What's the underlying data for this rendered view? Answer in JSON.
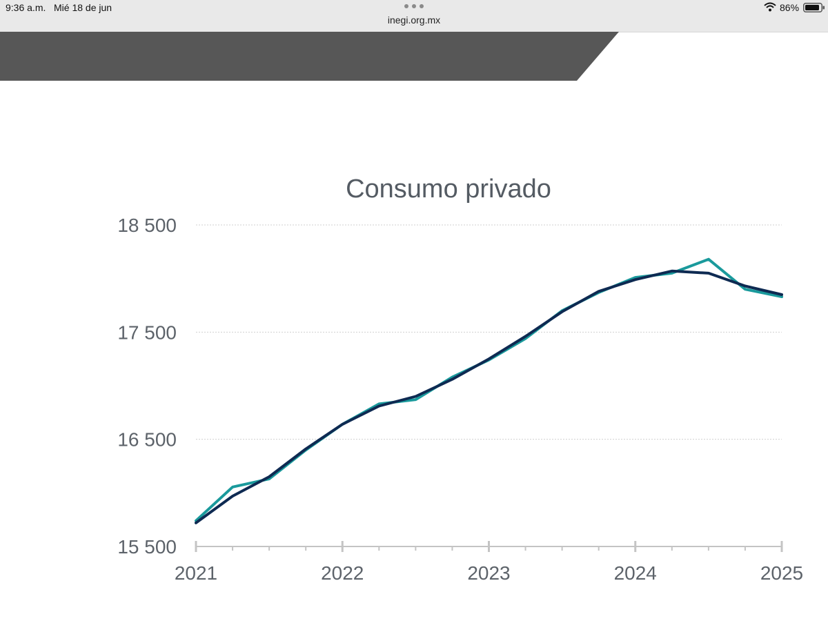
{
  "status_bar": {
    "time": "9:36 a.m.",
    "date": "Mié 18 de jun",
    "url": "inegi.org.mx",
    "battery": "86%"
  },
  "colors": {
    "banner": "#575757",
    "series_teal": "#1a9a9c",
    "series_navy": "#0e2a52",
    "grid": "#cfcfcf",
    "axis": "#c4c4c4"
  },
  "icons": [
    "tab-overview-icon",
    "wifi-icon",
    "battery-icon"
  ],
  "chart_data": {
    "type": "line",
    "title": "Consumo privado",
    "xlabel": "",
    "ylabel": "",
    "xlim": [
      2021,
      2025
    ],
    "ylim": [
      15500,
      18500
    ],
    "y_ticks": [
      15500,
      16500,
      17500,
      18500
    ],
    "y_tick_labels": [
      "15 500",
      "16 500",
      "17 500",
      "18 500"
    ],
    "x_ticks": [
      2021,
      2022,
      2023,
      2024,
      2025
    ],
    "x_tick_labels": [
      "2021",
      "2022",
      "2023",
      "2024",
      "2025"
    ],
    "x_minor_ticks": true,
    "grid": "horizontal dotted",
    "legend": "none",
    "x": [
      2021.0,
      2021.25,
      2021.5,
      2021.75,
      2022.0,
      2022.25,
      2022.5,
      2022.75,
      2023.0,
      2023.25,
      2023.5,
      2023.75,
      2024.0,
      2024.25,
      2024.5,
      2024.75,
      2025.0
    ],
    "series": [
      {
        "color": "#1a9a9c",
        "values": [
          15740,
          16055,
          16130,
          16400,
          16640,
          16830,
          16870,
          17080,
          17240,
          17440,
          17700,
          17870,
          18010,
          18050,
          18180,
          17900,
          17830
        ]
      },
      {
        "color": "#0e2a52",
        "values": [
          15720,
          15970,
          16150,
          16410,
          16640,
          16810,
          16900,
          17060,
          17250,
          17460,
          17690,
          17880,
          17990,
          18070,
          18050,
          17930,
          17850
        ]
      }
    ]
  }
}
